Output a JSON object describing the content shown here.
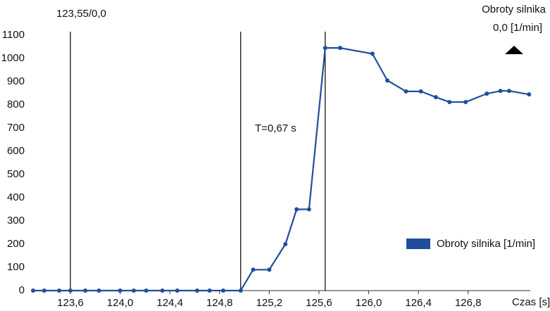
{
  "chart_data": {
    "type": "line",
    "x_label": "Czas [s]",
    "annotations": {
      "cursor": "123,55/0,0",
      "period": "T=0,67 s",
      "readout_title": "Obroty silnika",
      "readout_value": "0,0 [1/min]"
    },
    "cursor_lines": [
      123.6,
      124.97,
      125.65
    ],
    "x": [
      123.3,
      123.39,
      123.51,
      123.6,
      123.72,
      123.83,
      124.0,
      124.11,
      124.21,
      124.34,
      124.46,
      124.62,
      124.72,
      124.83,
      124.97,
      125.07,
      125.2,
      125.33,
      125.42,
      125.52,
      125.65,
      125.77,
      126.03,
      126.15,
      126.3,
      126.42,
      126.54,
      126.65,
      126.78,
      126.95,
      127.06,
      127.13,
      127.29
    ],
    "series": [
      {
        "name": "Obroty silnika [1/min]",
        "color": "#1f4e9c",
        "values": [
          0,
          0,
          0,
          0,
          0,
          0,
          0,
          0,
          0,
          0,
          0,
          0,
          0,
          0,
          0,
          90,
          90,
          200,
          350,
          350,
          1045,
          1045,
          1020,
          905,
          858,
          858,
          833,
          812,
          812,
          848,
          860,
          860,
          845
        ]
      }
    ],
    "xlim": [
      123.3,
      127.3
    ],
    "xticks": [
      {
        "value": 123.6,
        "label": "123,6"
      },
      {
        "value": 124.0,
        "label": "124,0"
      },
      {
        "value": 124.4,
        "label": "124,4"
      },
      {
        "value": 124.8,
        "label": "124,8"
      },
      {
        "value": 125.2,
        "label": "125,2"
      },
      {
        "value": 125.6,
        "label": "125,6"
      },
      {
        "value": 126.0,
        "label": "126,0"
      },
      {
        "value": 126.4,
        "label": "126,4"
      },
      {
        "value": 126.8,
        "label": "126,8"
      }
    ],
    "ylim": [
      0,
      1100
    ],
    "yticks": [
      0,
      100,
      200,
      300,
      400,
      500,
      600,
      700,
      800,
      900,
      1000,
      1100
    ],
    "legend": "bottom-right"
  }
}
